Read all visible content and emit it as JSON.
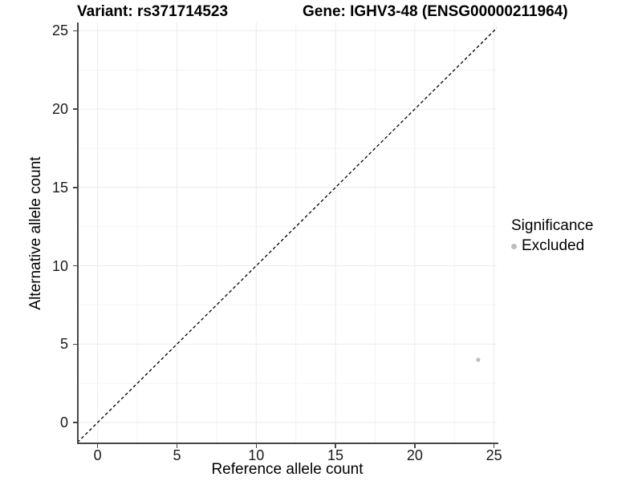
{
  "figure": {
    "title_left": "Variant: rs371714523",
    "title_right": "Gene: IGHV3-48 (ENSG00000211964)"
  },
  "legend": {
    "title": "Significance",
    "items": [
      {
        "label": "Excluded",
        "color": "#bdbdbd",
        "marker": "circle"
      }
    ]
  },
  "chart_data": {
    "type": "scatter",
    "title": "Variant: rs371714523 — Gene: IGHV3-48 (ENSG00000211964)",
    "xlabel": "Reference allele count",
    "ylabel": "Alternative allele count",
    "xlim": [
      -1.25,
      25.17
    ],
    "ylim": [
      -1.28,
      25.53
    ],
    "x_ticks": [
      0,
      5,
      10,
      15,
      20,
      25
    ],
    "y_ticks": [
      0,
      5,
      10,
      15,
      20,
      25
    ],
    "x_minor_ticks": [
      2.5,
      7.5,
      12.5,
      17.5,
      22.5
    ],
    "y_minor_ticks": [
      2.5,
      7.5,
      12.5,
      17.5,
      22.5
    ],
    "grid": "major+minor",
    "legend_position": "right",
    "series": [
      {
        "name": "Excluded",
        "color": "#bdbdbd",
        "point_radius": 2.6,
        "points": [
          {
            "x": 24,
            "y": 4
          }
        ]
      }
    ],
    "reference_line": {
      "type": "identity y=x",
      "style": "dashed",
      "color": "#000000",
      "width": 1.3
    }
  },
  "colors": {
    "background": "#ffffff",
    "grid_major": "#ebebeb",
    "grid_minor": "#f4f4f4",
    "axis_line": "#464646",
    "tick_text": "#1a1a1a",
    "title_text": "#000000"
  }
}
